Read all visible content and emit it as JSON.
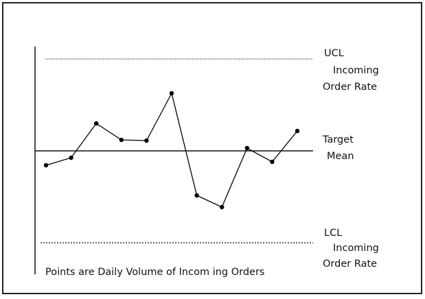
{
  "chart_data": {
    "type": "line",
    "ucl_label": [
      "UCL",
      "Incoming",
      "Order Rate"
    ],
    "mean_label": [
      "Target",
      "Mean"
    ],
    "lcl_label": [
      "LCL",
      "Incoming",
      "Order Rate"
    ],
    "note": "Points are Daily Volume of Incom ing Orders",
    "ucl": 13.4,
    "mean": 0,
    "lcl": -13.4,
    "categories": [
      null,
      null,
      null,
      null,
      null,
      null,
      null,
      null,
      null,
      null,
      null
    ],
    "values": [
      -2.1,
      -1.0,
      4.0,
      1.6,
      1.5,
      8.4,
      -6.5,
      -8.2,
      0.4,
      -1.6,
      2.9
    ],
    "color": "#000000",
    "ylim": [
      -18.0,
      15.2
    ]
  }
}
